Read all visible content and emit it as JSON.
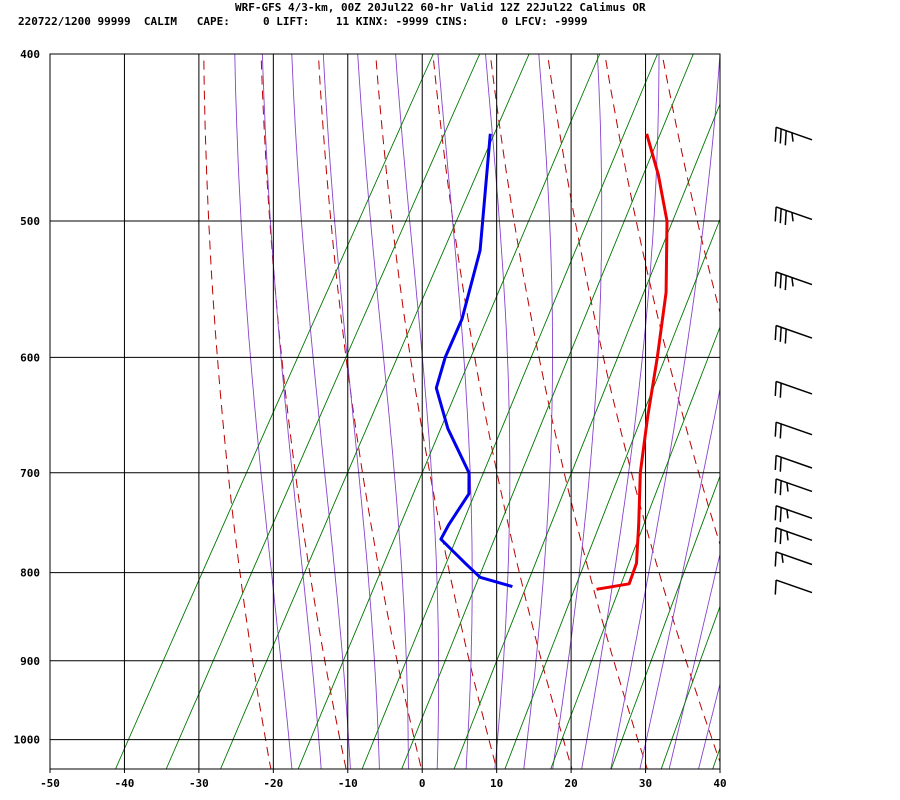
{
  "header": {
    "title": "WRF-GFS 4/3-km, 00Z 20Jul22 60-hr Valid 12Z 22Jul22 Calimus OR",
    "info": "220722/1200 99999  CALIM   CAPE:     0 LIFT:    11 KINX: -9999 CINS:     0 LFCV: -9999"
  },
  "chart_data": {
    "type": "line",
    "title": "WRF-GFS 4/3-km, 00Z 20Jul22 60-hr Valid 12Z 22Jul22 Calimus OR",
    "chart_kind": "skew-T log-p sounding",
    "x_axis": {
      "ticks": [
        -50,
        -40,
        -30,
        -20,
        -10,
        0,
        10,
        20,
        30,
        40
      ],
      "range": [
        -50,
        40
      ],
      "units": "degC"
    },
    "y_axis": {
      "ticks": [
        400,
        500,
        600,
        700,
        800,
        900,
        1000
      ],
      "range": [
        400,
        1040
      ],
      "scale": "log",
      "units": "hPa"
    },
    "grid": true,
    "series": [
      {
        "role": "temperature",
        "color": "#ee0000",
        "points": [
          {
            "p": 445,
            "t": -15.5
          },
          {
            "p": 470,
            "t": -11
          },
          {
            "p": 500,
            "t": -6.5
          },
          {
            "p": 550,
            "t": -1.5
          },
          {
            "p": 600,
            "t": 2
          },
          {
            "p": 650,
            "t": 5
          },
          {
            "p": 700,
            "t": 8
          },
          {
            "p": 750,
            "t": 11.5
          },
          {
            "p": 790,
            "t": 14
          },
          {
            "p": 812,
            "t": 14.5
          },
          {
            "p": 818,
            "t": 10.5
          }
        ]
      },
      {
        "role": "dewpoint",
        "color": "#0000ee",
        "points": [
          {
            "p": 445,
            "t": -36.5
          },
          {
            "p": 520,
            "t": -29.5
          },
          {
            "p": 570,
            "t": -27
          },
          {
            "p": 600,
            "t": -26.5
          },
          {
            "p": 625,
            "t": -25.5
          },
          {
            "p": 660,
            "t": -21
          },
          {
            "p": 700,
            "t": -15
          },
          {
            "p": 720,
            "t": -13.5
          },
          {
            "p": 750,
            "t": -14
          },
          {
            "p": 765,
            "t": -14
          },
          {
            "p": 790,
            "t": -9
          },
          {
            "p": 805,
            "t": -6
          },
          {
            "p": 815,
            "t": -1
          }
        ]
      }
    ],
    "background_lines": {
      "isotherm_color": "#000000",
      "dry_adiabat_color": "#bb0000",
      "moist_adiabat_color": "#8844cc",
      "mixing_ratio_color": "#007700"
    },
    "wind_barbs": [
      {
        "p": 445,
        "knots": 35
      },
      {
        "p": 495,
        "knots": 35
      },
      {
        "p": 540,
        "knots": 35
      },
      {
        "p": 580,
        "knots": 30
      },
      {
        "p": 625,
        "knots": 20
      },
      {
        "p": 660,
        "knots": 20
      },
      {
        "p": 690,
        "knots": 20
      },
      {
        "p": 712,
        "knots": 25
      },
      {
        "p": 738,
        "knots": 25
      },
      {
        "p": 760,
        "knots": 25
      },
      {
        "p": 785,
        "knots": 15
      },
      {
        "p": 815,
        "knots": 10
      }
    ]
  }
}
